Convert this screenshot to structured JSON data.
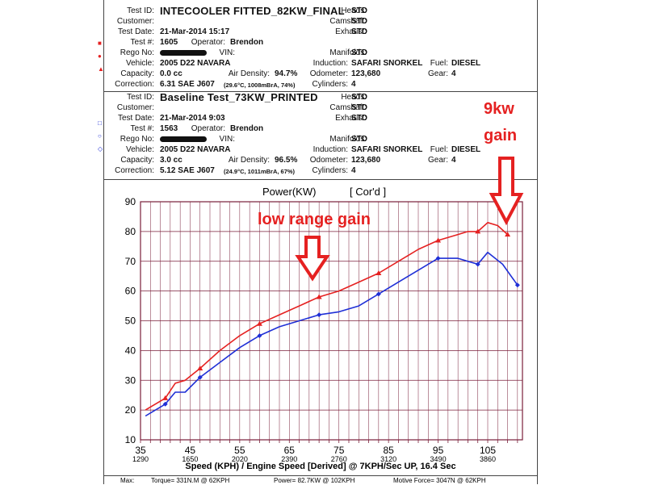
{
  "test1": {
    "test_id_label": "Test ID:",
    "test_id": "INTECOOLER FITTED_82KW_FINAL",
    "customer_label": "Customer:",
    "test_date_label": "Test Date:",
    "test_date": "21-Mar-2014 15:17",
    "test_no_label": "Test #:",
    "test_no": "1605",
    "operator_label": "Operator:",
    "operator": "Brendon",
    "rego_label": "Rego No:",
    "vin_label": "VIN:",
    "vehicle_label": "Vehicle:",
    "vehicle": "2005 D22 NAVARA",
    "capacity_label": "Capacity:",
    "capacity": "0.0 cc",
    "air_density_label": "Air Density:",
    "air_density": "94.7%",
    "correction_label": "Correction:",
    "correction": "6.31 SAE J607",
    "correction_note": "(29.6°C, 1008mBrA, 74%)",
    "heads_label": "Heads:",
    "heads": "STD",
    "camshaft_label": "Camshaft:",
    "camshaft": "STD",
    "exhaust_label": "Exhaust:",
    "exhaust": "STD",
    "manifolds_label": "Manifolds:",
    "manifolds": "STD",
    "induction_label": "Induction:",
    "induction": "SAFARI SNORKEL",
    "fuel_label": "Fuel:",
    "fuel": "DIESEL",
    "odometer_label": "Odometer:",
    "odometer": "123,680",
    "gear_label": "Gear:",
    "gear": "4",
    "cylinders_label": "Cylinders:",
    "cylinders": "4"
  },
  "test2": {
    "test_id_label": "Test ID:",
    "test_id": "Baseline Test_73KW_PRINTED",
    "customer_label": "Customer:",
    "test_date_label": "Test Date:",
    "test_date": "21-Mar-2014 9:03",
    "test_no_label": "Test #:",
    "test_no": "1563",
    "operator_label": "Operator:",
    "operator": "Brendon",
    "rego_label": "Rego No:",
    "vin_label": "VIN:",
    "vehicle_label": "Vehicle:",
    "vehicle": "2005 D22 NAVARA",
    "capacity_label": "Capacity:",
    "capacity": "3.0 cc",
    "air_density_label": "Air Density:",
    "air_density": "96.5%",
    "correction_label": "Correction:",
    "correction": "5.12 SAE J607",
    "correction_note": "(24.9°C, 1011mBrA, 67%)",
    "heads_label": "Heads:",
    "heads": "STD",
    "camshaft_label": "Camshaft:",
    "camshaft": "STD",
    "exhaust_label": "Exhaust:",
    "exhaust": "STD",
    "manifolds_label": "Manifolds:",
    "manifolds": "STD",
    "induction_label": "Induction:",
    "induction": "SAFARI SNORKEL",
    "fuel_label": "Fuel:",
    "fuel": "DIESEL",
    "odometer_label": "Odometer:",
    "odometer": "123,680",
    "gear_label": "Gear:",
    "gear": "4",
    "cylinders_label": "Cylinders:",
    "cylinders": "4"
  },
  "annotations": {
    "gain_9kw_line1": "9kw",
    "gain_9kw_line2": "gain",
    "low_range": "low range gain"
  },
  "footer": {
    "max_label": "Max:",
    "torque": "Torque= 331N.M @ 62KPH",
    "power": "Power= 82.7KW @ 102KPH",
    "motive": "Motive Force= 3047N @ 62KPH"
  },
  "colors": {
    "test1": "#e52121",
    "test2": "#1f2fd6",
    "grid": "#7a1f3a",
    "annotation": "#e52121"
  },
  "chart_data": {
    "type": "line",
    "title": "Power(KW)",
    "title_suffix": "[ Cor'd ]",
    "xlabel": "Speed (KPH) / Engine Speed [Derived] @ 7KPH/Sec UP, 16.4 Sec",
    "ylabel": "",
    "xlim": [
      35,
      112
    ],
    "ylim": [
      10,
      90
    ],
    "x_ticks": [
      35,
      45,
      55,
      65,
      75,
      85,
      95,
      105
    ],
    "x_tick_labels": [
      "35",
      "45",
      "55",
      "65",
      "75",
      "85",
      "95",
      "105"
    ],
    "x_secondary_ticks": [
      "1290",
      "1650",
      "2020",
      "2390",
      "2760",
      "3120",
      "3490",
      "3860"
    ],
    "y_ticks": [
      10,
      20,
      30,
      40,
      50,
      60,
      70,
      80,
      90
    ],
    "grid": true,
    "series": [
      {
        "name": "INTECOOLER FITTED_82KW_FINAL",
        "color": "#e52121",
        "marker": "triangle",
        "x": [
          36,
          40,
          42,
          44,
          47,
          51,
          55,
          59,
          63,
          67,
          71,
          75,
          79,
          83,
          87,
          91,
          95,
          99,
          101,
          103,
          105,
          107,
          109
        ],
        "y": [
          20,
          24,
          29,
          30,
          34,
          40,
          45,
          49,
          52,
          55,
          58,
          60,
          63,
          66,
          70,
          74,
          77,
          79,
          80,
          80,
          83,
          82,
          79
        ]
      },
      {
        "name": "Baseline Test_73KW_PRINTED",
        "color": "#1f2fd6",
        "marker": "diamond",
        "x": [
          36,
          40,
          42,
          44,
          47,
          51,
          55,
          59,
          63,
          67,
          71,
          75,
          79,
          83,
          87,
          91,
          95,
          99,
          101,
          103,
          105,
          108,
          111
        ],
        "y": [
          18,
          22,
          26,
          26,
          31,
          36,
          41,
          45,
          48,
          50,
          52,
          53,
          55,
          59,
          63,
          67,
          71,
          71,
          70,
          69,
          73,
          69,
          62
        ]
      }
    ]
  }
}
